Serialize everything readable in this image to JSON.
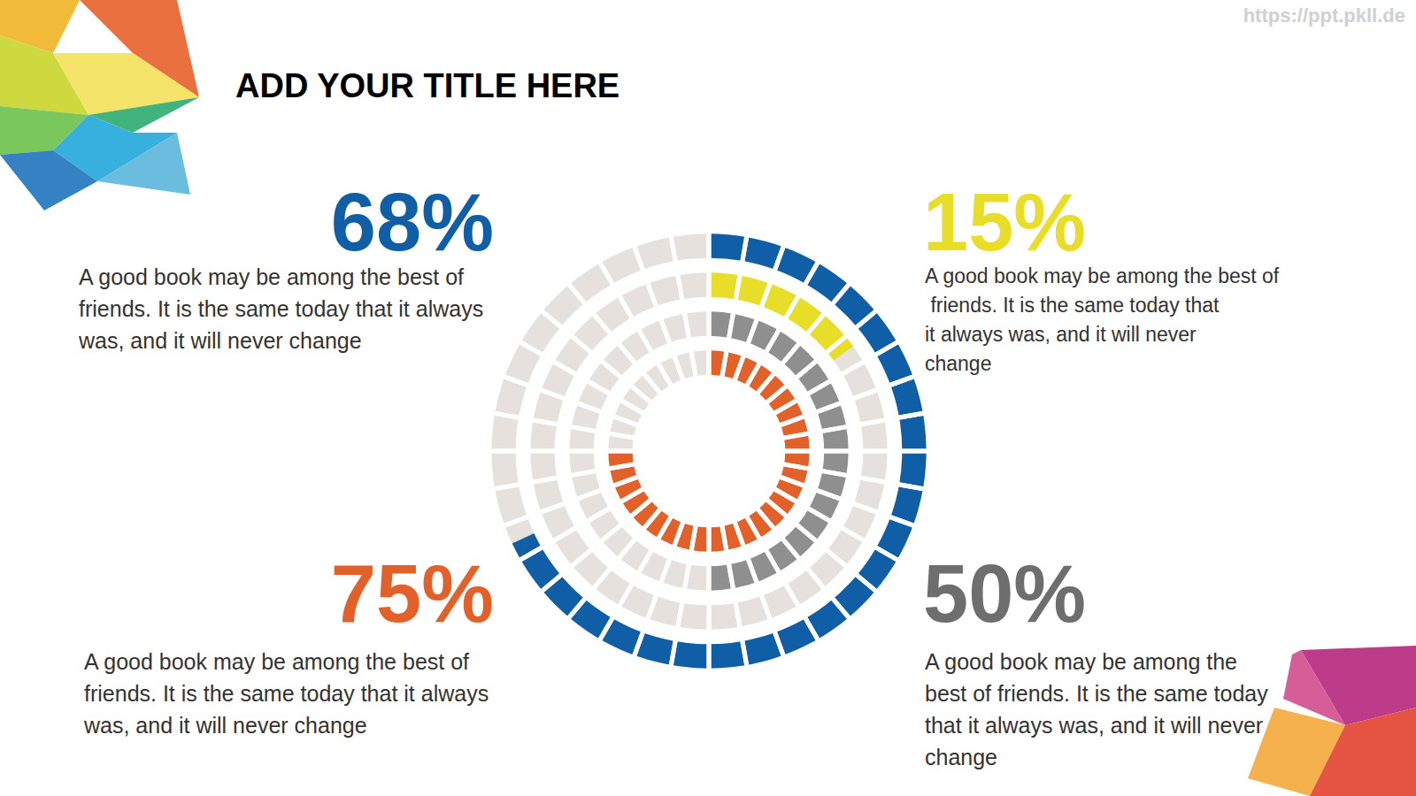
{
  "chart_data": {
    "type": "radial_bar",
    "title": "ADD YOUR TITLE HERE",
    "watermark": "https://ppt.pkll.de",
    "values": [
      68,
      15,
      50,
      75
    ],
    "value_labels": [
      "68%",
      "15%",
      "50%",
      "75%"
    ],
    "colors": [
      "#105ea5",
      "#e8de2a",
      "#8f8f8f",
      "#e2612a"
    ],
    "annotations": [
      "A good book may be among the best of friends. It is the same today that it always was, and it will never change",
      "A good book may be among the best of friends. It is the same today that it always was, and it will never change",
      "A good book may be among the best of friends. It is the same today that it always was, and it will never change",
      "A good book may be among the best of friends. It is the same today that it always was, and it will never change"
    ],
    "ylim": [
      0,
      100
    ],
    "data_labels": true,
    "tick_labels": false
  }
}
